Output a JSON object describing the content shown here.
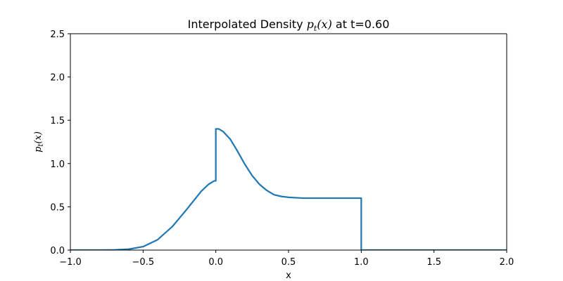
{
  "chart_data": {
    "type": "line",
    "title": {
      "prefix": "Interpolated Density ",
      "math_main": "p",
      "math_sub": "t",
      "math_arg": "(x)",
      "suffix": " at t=0.60"
    },
    "xlabel": "x",
    "ylabel": {
      "main": "p",
      "sub": "t",
      "arg": "(x)"
    },
    "xlim": [
      -1.0,
      2.0
    ],
    "ylim": [
      0.0,
      2.5
    ],
    "xticks": [
      -1.0,
      -0.5,
      0.0,
      0.5,
      1.0,
      1.5,
      2.0
    ],
    "xtick_labels": [
      "−1.0",
      "−0.5",
      "0.0",
      "0.5",
      "1.0",
      "1.5",
      "2.0"
    ],
    "yticks": [
      0.0,
      0.5,
      1.0,
      1.5,
      2.0,
      2.5
    ],
    "ytick_labels": [
      "0.0",
      "0.5",
      "1.0",
      "1.5",
      "2.0",
      "2.5"
    ],
    "grid": false,
    "series": [
      {
        "color": "#1f77b4",
        "x": [
          -1.0,
          -0.9,
          -0.8,
          -0.7,
          -0.6,
          -0.5,
          -0.4,
          -0.3,
          -0.2,
          -0.1,
          -0.05,
          -0.01,
          0.0,
          0.0,
          0.02,
          0.05,
          0.1,
          0.15,
          0.2,
          0.25,
          0.3,
          0.35,
          0.4,
          0.45,
          0.5,
          0.6,
          0.7,
          0.8,
          0.9,
          1.0,
          1.0,
          1.01,
          1.5,
          2.0
        ],
        "y": [
          0.0,
          0.0,
          0.0,
          0.002,
          0.01,
          0.04,
          0.12,
          0.27,
          0.47,
          0.68,
          0.76,
          0.8,
          0.8,
          1.4,
          1.4,
          1.37,
          1.28,
          1.14,
          0.99,
          0.86,
          0.76,
          0.69,
          0.64,
          0.62,
          0.61,
          0.6,
          0.6,
          0.6,
          0.6,
          0.6,
          0.0,
          0.0,
          0.0,
          0.0
        ]
      }
    ]
  }
}
